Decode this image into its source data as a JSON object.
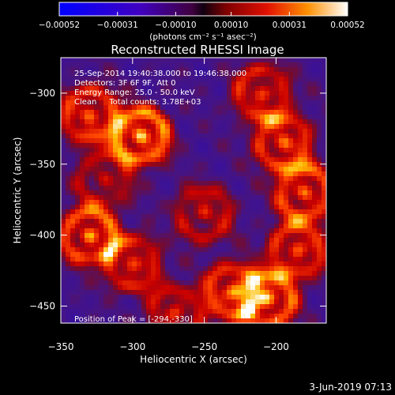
{
  "chart_data": {
    "type": "heatmap",
    "title": "Reconstructed RHESSI Image",
    "xlabel": "Heliocentric X (arcsec)",
    "ylabel": "Heliocentric Y (arcsec)",
    "xlim": [
      -350,
      -165
    ],
    "ylim": [
      -462,
      -275
    ],
    "x_ticks": [
      -350,
      -300,
      -250,
      -200
    ],
    "x_tick_labels": [
      "−350",
      "−300",
      "−250",
      "−200"
    ],
    "y_ticks": [
      -300,
      -350,
      -400,
      -450
    ],
    "y_tick_labels": [
      "−300",
      "−350",
      "−400",
      "−450"
    ],
    "colorbar": {
      "range": [
        -0.00052,
        0.00052
      ],
      "ticks": [
        -0.00052,
        -0.00031,
        -0.0001,
        0.0001,
        0.00031,
        0.00052
      ],
      "tick_labels": [
        "−0.00052",
        "−0.00031",
        "−0.00010",
        "0.00010",
        "0.00031",
        "0.00052"
      ],
      "unit_label": "(photons cm⁻² s⁻¹ asec⁻²)"
    },
    "annotations": [
      "25-Sep-2014 19:40:38.000 to 19:46:38.000",
      "Detectors: 3F 6F 9F, Att 0",
      "Energy Range: 25.0 - 50.0 keV",
      "Clean     Total counts: 3.78E+03"
    ],
    "peak_label": "Position of Peak = [-294,-330]",
    "peak": [
      -294,
      -330
    ],
    "hot_regions": [
      {
        "x": -294,
        "y": -330,
        "value": 0.00052
      },
      {
        "x": -330,
        "y": -315,
        "value": 0.0004
      },
      {
        "x": -210,
        "y": -300,
        "value": 0.00035
      },
      {
        "x": -195,
        "y": -335,
        "value": 0.0004
      },
      {
        "x": -180,
        "y": -370,
        "value": 0.00042
      },
      {
        "x": -185,
        "y": -410,
        "value": 0.00038
      },
      {
        "x": -330,
        "y": -400,
        "value": 0.00045
      },
      {
        "x": -300,
        "y": -420,
        "value": 0.00035
      },
      {
        "x": -250,
        "y": -385,
        "value": 0.0003
      },
      {
        "x": -230,
        "y": -440,
        "value": 0.0004
      },
      {
        "x": -205,
        "y": -445,
        "value": 0.00045
      },
      {
        "x": -270,
        "y": -455,
        "value": 0.0003
      },
      {
        "x": -320,
        "y": -360,
        "value": 0.00025
      }
    ]
  },
  "footer": {
    "timestamp": "3-Jun-2019 07:13"
  }
}
